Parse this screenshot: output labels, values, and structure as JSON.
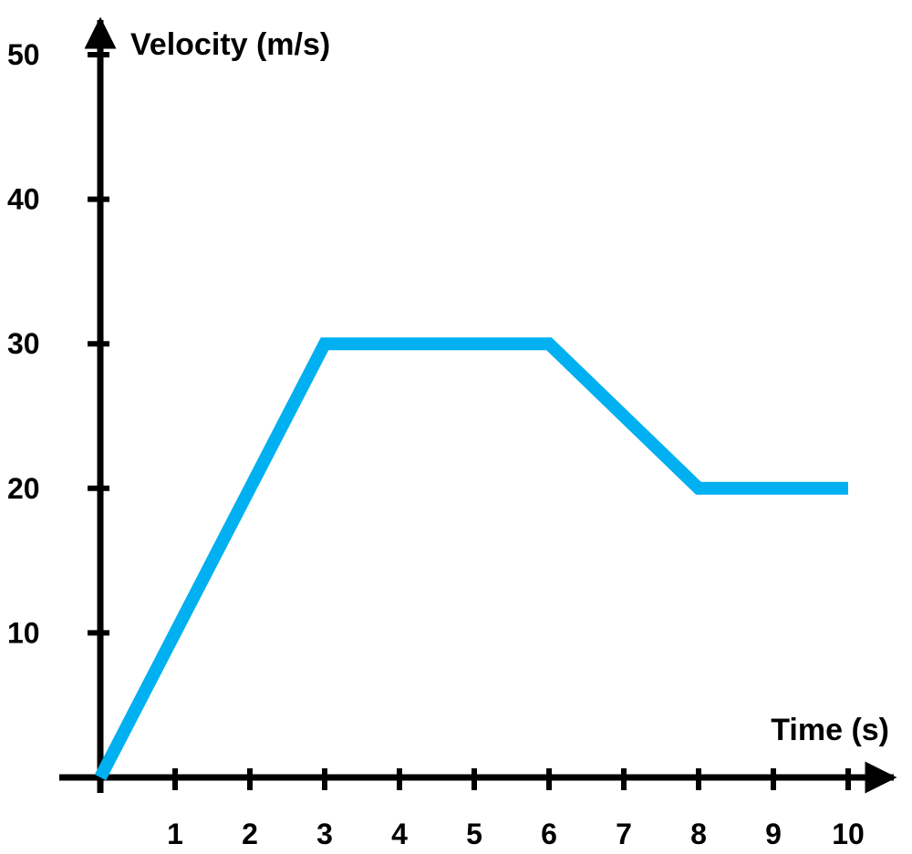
{
  "chart_data": {
    "type": "line",
    "title": "",
    "xlabel": "Time (s)",
    "ylabel": "Velocity (m/s)",
    "xlim": [
      0,
      10
    ],
    "ylim": [
      0,
      50
    ],
    "xticks": [
      1,
      2,
      3,
      4,
      5,
      6,
      7,
      8,
      9,
      10
    ],
    "yticks": [
      10,
      20,
      30,
      40,
      50
    ],
    "grid": false,
    "series": [
      {
        "color": "#00B0F0",
        "x": [
          0,
          3,
          6,
          8,
          10
        ],
        "y": [
          0,
          30,
          30,
          20,
          20
        ]
      }
    ]
  }
}
